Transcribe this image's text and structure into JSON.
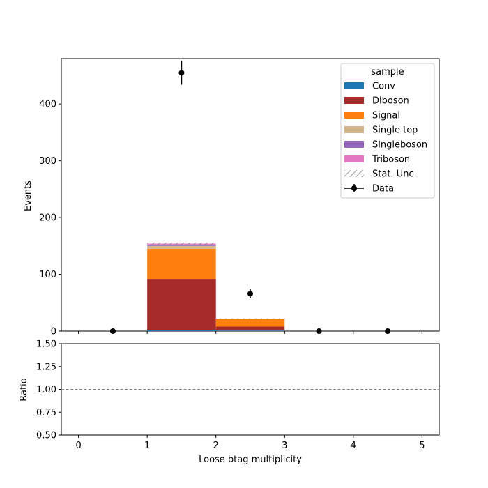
{
  "chart_data": [
    {
      "type": "bar",
      "stacked": true,
      "xlabel": "",
      "ylabel": "Events",
      "xlim": [
        -0.25,
        5.25
      ],
      "ylim": [
        0,
        480
      ],
      "x_ticks": [
        0,
        1,
        2,
        3,
        4,
        5
      ],
      "x_ticklabels_visible": false,
      "y_ticks": [
        0,
        100,
        200,
        300,
        400
      ],
      "bins": [
        [
          0,
          1
        ],
        [
          1,
          2
        ],
        [
          2,
          3
        ],
        [
          3,
          4
        ],
        [
          4,
          5
        ]
      ],
      "series": [
        {
          "name": "Conv",
          "color": "#1f77b4",
          "values": [
            0,
            2,
            1,
            0,
            0
          ]
        },
        {
          "name": "Diboson",
          "color": "#a72b2b",
          "values": [
            0,
            90,
            7,
            0,
            0
          ]
        },
        {
          "name": "Signal",
          "color": "#ff7f0e",
          "values": [
            0,
            53,
            13,
            0,
            0
          ]
        },
        {
          "name": "Single top",
          "color": "#d2b48c",
          "values": [
            0,
            5,
            0.5,
            0,
            0
          ]
        },
        {
          "name": "Singleboson",
          "color": "#9467bd",
          "values": [
            0,
            1,
            0.2,
            0,
            0
          ]
        },
        {
          "name": "Triboson",
          "color": "#e377c2",
          "values": [
            0,
            3,
            0.3,
            0,
            0
          ]
        }
      ],
      "stat_unc": {
        "name": "Stat. Unc.",
        "bins": [
          [
            1,
            2,
            152,
            156
          ],
          [
            2,
            3,
            21,
            22.5
          ]
        ]
      },
      "data": {
        "name": "Data",
        "points": [
          {
            "x": 0.5,
            "y": 0,
            "err": 0
          },
          {
            "x": 1.5,
            "y": 455,
            "err": 21
          },
          {
            "x": 2.5,
            "y": 66,
            "err": 8
          },
          {
            "x": 3.5,
            "y": 0,
            "err": 0
          },
          {
            "x": 4.5,
            "y": 0,
            "err": 0
          }
        ]
      },
      "legend": {
        "title": "sample",
        "placement": "top-right"
      }
    },
    {
      "type": "line",
      "xlabel": "Loose btag multiplicity",
      "ylabel": "Ratio",
      "xlim": [
        -0.25,
        5.25
      ],
      "ylim": [
        0.5,
        1.5
      ],
      "x_ticks": [
        0,
        1,
        2,
        3,
        4,
        5
      ],
      "y_ticks": [
        0.5,
        0.75,
        1.0,
        1.25,
        1.5
      ],
      "y_ticklabels": [
        "0.50",
        "0.75",
        "1.00",
        "1.25",
        "1.50"
      ],
      "reference_line": {
        "y": 1.0,
        "style": "dashed",
        "color": "#808080"
      }
    }
  ]
}
